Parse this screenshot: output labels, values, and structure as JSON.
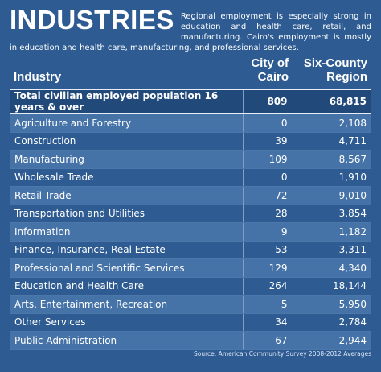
{
  "header": {
    "title": "INDUSTRIES",
    "description": "Regional employment is especially strong in education and health care, retail, and manufacturing. Cairo's employment is mostly in education and health care, manufacturing, and professional services."
  },
  "table": {
    "columns": [
      "Industry",
      "City of Cairo",
      "Six-County Region"
    ],
    "total": [
      "Total civilian employed population 16 years & over",
      "809",
      "68,815"
    ],
    "rows": [
      [
        "Agriculture and Forestry",
        "0",
        "2,108"
      ],
      [
        "Construction",
        "39",
        "4,711"
      ],
      [
        "Manufacturing",
        "109",
        "8,567"
      ],
      [
        "Wholesale Trade",
        "0",
        "1,910"
      ],
      [
        "Retail Trade",
        "72",
        "9,010"
      ],
      [
        "Transportation and Utilities",
        "28",
        "3,854"
      ],
      [
        "Information",
        "9",
        "1,182"
      ],
      [
        "Finance, Insurance, Real Estate",
        "53",
        "3,311"
      ],
      [
        "Professional and Scientific Services",
        "129",
        "4,340"
      ],
      [
        "Education and Health Care",
        "264",
        "18,144"
      ],
      [
        "Arts, Entertainment, Recreation",
        "5",
        "5,950"
      ],
      [
        "Other Services",
        "34",
        "2,784"
      ],
      [
        "Public Administration",
        "67",
        "2,944"
      ]
    ]
  },
  "source": "Source: American Community Survey 2008-2012 Averages"
}
